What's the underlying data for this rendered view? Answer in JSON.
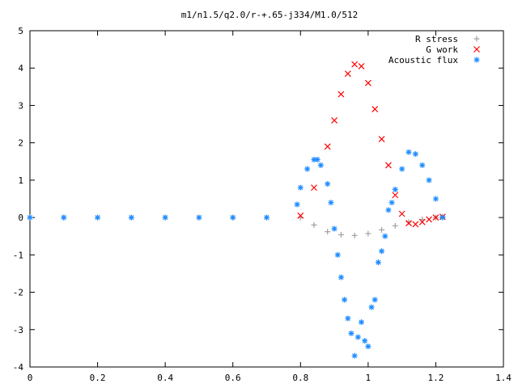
{
  "chart_data": {
    "type": "scatter",
    "title": "m1/n1.5/q2.0/r-+.65-j334/M1.0/512",
    "xlabel": "",
    "ylabel": "",
    "xlim": [
      0,
      1.4
    ],
    "ylim": [
      -4,
      5
    ],
    "x_ticks": [
      "0",
      "0.2",
      "0.4",
      "0.6",
      "0.8",
      "1",
      "1.2",
      "1.4"
    ],
    "y_ticks": [
      "5",
      "4",
      "3",
      "2",
      "1",
      "0",
      "-1",
      "-2",
      "-3",
      "-4"
    ],
    "grid": false,
    "legend_position": "top-right",
    "series": [
      {
        "name": "R stress",
        "marker": "+",
        "color": "#a0a0a0",
        "x": [
          0.0,
          0.1,
          0.2,
          0.3,
          0.4,
          0.5,
          0.6,
          0.7,
          0.8,
          0.84,
          0.88,
          0.92,
          0.96,
          1.0,
          1.04,
          1.08,
          1.12,
          1.16,
          1.2,
          1.22
        ],
        "y": [
          0,
          0,
          0,
          0,
          0,
          0,
          0,
          0,
          0,
          -0.2,
          -0.38,
          -0.46,
          -0.48,
          -0.43,
          -0.33,
          -0.22,
          -0.12,
          -0.05,
          0.0,
          0.02
        ]
      },
      {
        "name": "G work",
        "marker": "x",
        "color": "#ff0000",
        "x": [
          0.8,
          0.84,
          0.88,
          0.9,
          0.92,
          0.94,
          0.96,
          0.98,
          1.0,
          1.02,
          1.04,
          1.06,
          1.08,
          1.1,
          1.12,
          1.14,
          1.16,
          1.18,
          1.2,
          1.22
        ],
        "y": [
          0.05,
          0.8,
          1.9,
          2.6,
          3.3,
          3.85,
          4.1,
          4.05,
          3.6,
          2.9,
          2.1,
          1.4,
          0.6,
          0.1,
          -0.15,
          -0.18,
          -0.12,
          -0.05,
          0.0,
          0.02
        ]
      },
      {
        "name": "Acoustic flux",
        "marker": "*",
        "color": "#1e8cff",
        "x": [
          0.0,
          0.1,
          0.2,
          0.3,
          0.4,
          0.5,
          0.6,
          0.7,
          0.79,
          0.8,
          0.82,
          0.84,
          0.85,
          0.86,
          0.88,
          0.89,
          0.9,
          0.91,
          0.92,
          0.93,
          0.94,
          0.95,
          0.96,
          0.97,
          0.98,
          0.99,
          1.0,
          1.01,
          1.02,
          1.03,
          1.04,
          1.05,
          1.06,
          1.07,
          1.08,
          1.1,
          1.12,
          1.14,
          1.16,
          1.18,
          1.2,
          1.22
        ],
        "y": [
          0,
          0,
          0,
          0,
          0,
          0,
          0,
          0,
          0.35,
          0.8,
          1.3,
          1.55,
          1.55,
          1.4,
          0.9,
          0.4,
          -0.3,
          -1.0,
          -1.6,
          -2.2,
          -2.7,
          -3.1,
          -3.7,
          -3.2,
          -2.8,
          -3.3,
          -3.45,
          -2.4,
          -2.2,
          -1.2,
          -0.9,
          -0.5,
          0.2,
          0.4,
          0.75,
          1.3,
          1.75,
          1.7,
          1.4,
          1.0,
          0.5,
          0.0
        ]
      }
    ]
  }
}
